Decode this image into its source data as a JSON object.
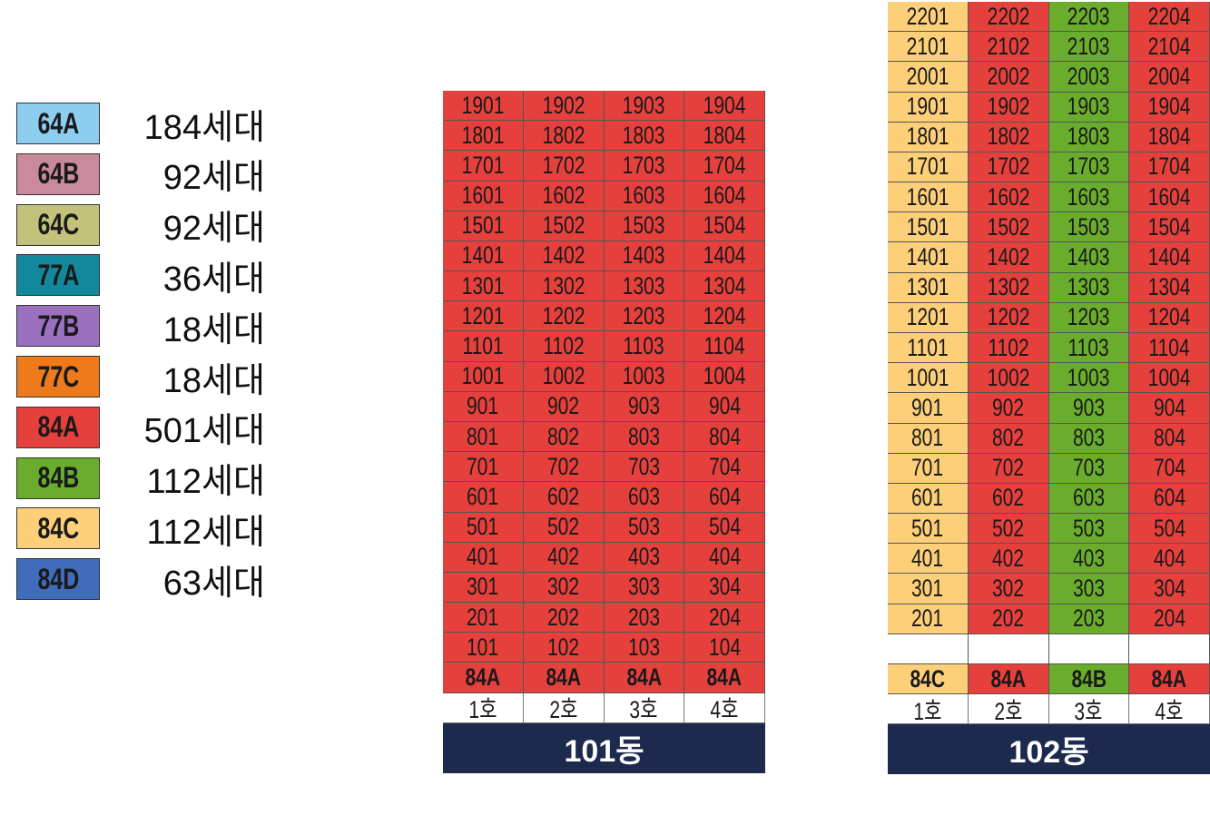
{
  "legend": [
    {
      "label": "64A",
      "count": "184세대",
      "color": "#8ccdf0"
    },
    {
      "label": "64B",
      "count": "92세대",
      "color": "#c98a9b"
    },
    {
      "label": "64C",
      "count": "92세대",
      "color": "#c3c27a"
    },
    {
      "label": "77A",
      "count": "36세대",
      "color": "#13889c"
    },
    {
      "label": "77B",
      "count": "18세대",
      "color": "#9b70be"
    },
    {
      "label": "77C",
      "count": "18세대",
      "color": "#ee7a1c"
    },
    {
      "label": "84A",
      "count": "501세대",
      "color": "#e6403d"
    },
    {
      "label": "84B",
      "count": "112세대",
      "color": "#6aad2d"
    },
    {
      "label": "84C",
      "count": "112세대",
      "color": "#fccf78"
    },
    {
      "label": "84D",
      "count": "63세대",
      "color": "#3f6dbc"
    }
  ],
  "buildings": [
    {
      "name": "101동",
      "rows": [
        [
          "1901",
          "1902",
          "1903",
          "1904"
        ],
        [
          "1801",
          "1802",
          "1803",
          "1804"
        ],
        [
          "1701",
          "1702",
          "1703",
          "1704"
        ],
        [
          "1601",
          "1602",
          "1603",
          "1604"
        ],
        [
          "1501",
          "1502",
          "1503",
          "1504"
        ],
        [
          "1401",
          "1402",
          "1403",
          "1404"
        ],
        [
          "1301",
          "1302",
          "1303",
          "1304"
        ],
        [
          "1201",
          "1202",
          "1203",
          "1204"
        ],
        [
          "1101",
          "1102",
          "1103",
          "1104"
        ],
        [
          "1001",
          "1002",
          "1003",
          "1004"
        ],
        [
          "901",
          "902",
          "903",
          "904"
        ],
        [
          "801",
          "802",
          "803",
          "804"
        ],
        [
          "701",
          "702",
          "703",
          "704"
        ],
        [
          "601",
          "602",
          "603",
          "604"
        ],
        [
          "501",
          "502",
          "503",
          "504"
        ],
        [
          "401",
          "402",
          "403",
          "404"
        ],
        [
          "301",
          "302",
          "303",
          "304"
        ],
        [
          "201",
          "202",
          "203",
          "204"
        ],
        [
          "101",
          "102",
          "103",
          "104"
        ]
      ],
      "types": [
        "84A",
        "84A",
        "84A",
        "84A"
      ],
      "ho": [
        "1호",
        "2호",
        "3호",
        "4호"
      ]
    },
    {
      "name": "102동",
      "rows": [
        [
          "2201",
          "2202",
          "2203",
          "2204"
        ],
        [
          "2101",
          "2102",
          "2103",
          "2104"
        ],
        [
          "2001",
          "2002",
          "2003",
          "2004"
        ],
        [
          "1901",
          "1902",
          "1903",
          "1904"
        ],
        [
          "1801",
          "1802",
          "1803",
          "1804"
        ],
        [
          "1701",
          "1702",
          "1703",
          "1704"
        ],
        [
          "1601",
          "1602",
          "1603",
          "1604"
        ],
        [
          "1501",
          "1502",
          "1503",
          "1504"
        ],
        [
          "1401",
          "1402",
          "1403",
          "1404"
        ],
        [
          "1301",
          "1302",
          "1303",
          "1304"
        ],
        [
          "1201",
          "1202",
          "1203",
          "1204"
        ],
        [
          "1101",
          "1102",
          "1103",
          "1104"
        ],
        [
          "1001",
          "1002",
          "1003",
          "1004"
        ],
        [
          "901",
          "902",
          "903",
          "904"
        ],
        [
          "801",
          "802",
          "803",
          "804"
        ],
        [
          "701",
          "702",
          "703",
          "704"
        ],
        [
          "601",
          "602",
          "603",
          "604"
        ],
        [
          "501",
          "502",
          "503",
          "504"
        ],
        [
          "401",
          "402",
          "403",
          "404"
        ],
        [
          "301",
          "302",
          "303",
          "304"
        ],
        [
          "201",
          "202",
          "203",
          "204"
        ],
        [
          null,
          null,
          null,
          null
        ]
      ],
      "types": [
        "84C",
        "84A",
        "84B",
        "84A"
      ],
      "ho": [
        "1호",
        "2호",
        "3호",
        "4호"
      ]
    }
  ]
}
